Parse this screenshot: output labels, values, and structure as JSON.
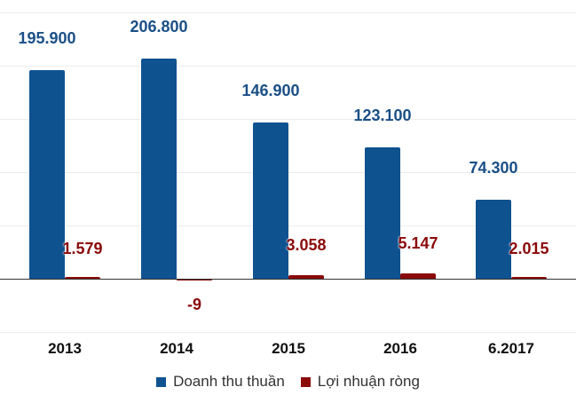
{
  "chart_data": {
    "type": "bar",
    "title": "",
    "xlabel": "",
    "ylabel": "",
    "categories": [
      "2013",
      "2014",
      "2015",
      "2016",
      "6.2017"
    ],
    "series": [
      {
        "name": "Doanh thu thuần",
        "color": "#0f5290",
        "values": [
          195900,
          206800,
          146900,
          123100,
          74300
        ],
        "labels": [
          "195.900",
          "206.800",
          "146.900",
          "123.100",
          "74.300"
        ]
      },
      {
        "name": "Lợi nhuận ròng",
        "color": "#8b0a0a",
        "values": [
          1579,
          -9,
          3058,
          5147,
          2015
        ],
        "labels": [
          "1.579",
          "-9",
          "3.058",
          "5.147",
          "2.015"
        ]
      }
    ],
    "ylim": [
      -50000,
      250000
    ],
    "grid": true,
    "gridline_step": 50000,
    "legend_position": "bottom",
    "data_labels": true
  },
  "legend": {
    "items": [
      {
        "label": "Doanh thu thuần",
        "color": "#0f5290"
      },
      {
        "label": "Lợi nhuận ròng",
        "color": "#8b0a0a"
      }
    ]
  },
  "label_colors": {
    "revenue": "#1a4f86",
    "profit": "#8b0a0a"
  }
}
